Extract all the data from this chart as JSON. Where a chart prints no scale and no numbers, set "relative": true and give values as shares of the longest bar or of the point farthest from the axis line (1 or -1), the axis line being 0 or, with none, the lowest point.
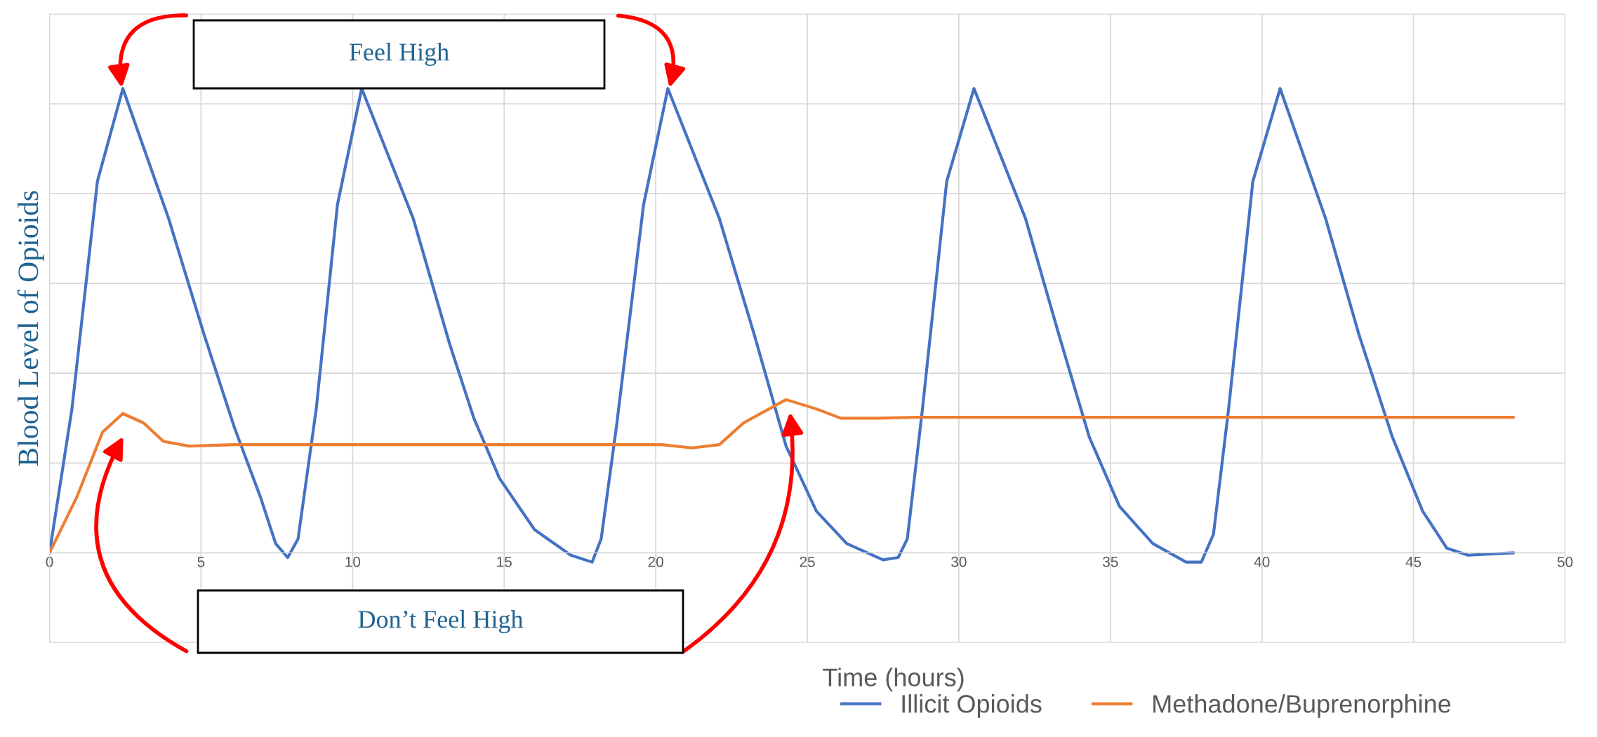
{
  "chart_data": {
    "type": "line",
    "relative": true,
    "xlabel": "Time (hours)",
    "ylabel": "Blood Level of Opioids",
    "xlim": [
      0,
      50
    ],
    "xticks": [
      0,
      5,
      10,
      15,
      20,
      25,
      30,
      35,
      40,
      45,
      50
    ],
    "grid": true,
    "legend": "bottom",
    "tick_labels": "x",
    "annotations": [
      "Feel High",
      "Don’t Feel High"
    ],
    "series": [
      {
        "name": "Illicit Opioids",
        "color": "#4472c4",
        "x": [
          0,
          0.74,
          1.58,
          2.42,
          3.93,
          5.1,
          6.1,
          6.96,
          7.46,
          7.86,
          8.2,
          8.8,
          9.5,
          10.3,
          12.0,
          13.2,
          14.0,
          14.85,
          16.0,
          17.2,
          17.9,
          18.2,
          18.7,
          19.6,
          20.4,
          22.1,
          23.25,
          24.3,
          25.3,
          26.3,
          27.5,
          28.0,
          28.3,
          28.8,
          29.6,
          30.5,
          32.2,
          33.3,
          34.3,
          35.3,
          36.4,
          37.5,
          38.0,
          38.4,
          38.9,
          39.7,
          40.6,
          42.1,
          43.2,
          44.3,
          45.3,
          46.1,
          46.8,
          48.3
        ],
        "values": [
          0,
          0.31,
          0.8,
          1.0,
          0.72,
          0.47,
          0.27,
          0.12,
          0.02,
          -0.01,
          0.03,
          0.31,
          0.75,
          1.0,
          0.72,
          0.45,
          0.29,
          0.16,
          0.05,
          -0.005,
          -0.02,
          0.03,
          0.27,
          0.75,
          1.0,
          0.72,
          0.47,
          0.23,
          0.09,
          0.02,
          -0.015,
          -0.01,
          0.03,
          0.31,
          0.8,
          1.0,
          0.72,
          0.47,
          0.25,
          0.1,
          0.02,
          -0.02,
          -0.02,
          0.04,
          0.31,
          0.8,
          1.0,
          0.72,
          0.47,
          0.25,
          0.09,
          0.01,
          -0.005,
          0
        ]
      },
      {
        "name": "Methadone/Buprenorphine",
        "color": "#ed7d31",
        "x": [
          0,
          0.9,
          1.75,
          2.42,
          3.1,
          3.76,
          4.6,
          6.1,
          20.2,
          21.2,
          22.1,
          22.9,
          24.3,
          25.3,
          26.1,
          27.3,
          28.6,
          48.3
        ],
        "values": [
          0,
          0.12,
          0.26,
          0.3,
          0.28,
          0.24,
          0.23,
          0.233,
          0.233,
          0.226,
          0.233,
          0.28,
          0.33,
          0.31,
          0.29,
          0.29,
          0.292,
          0.292
        ]
      }
    ]
  }
}
